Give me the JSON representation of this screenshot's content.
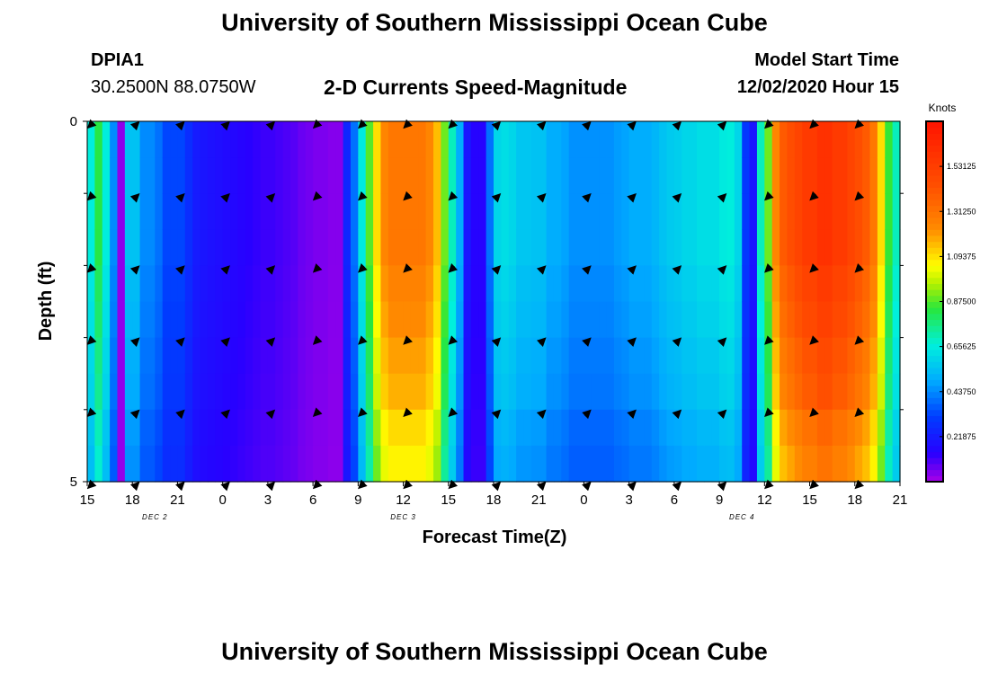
{
  "page": {
    "title": "University of Southern Mississippi Ocean Cube",
    "footer_title": "University of Southern Mississippi Ocean Cube",
    "station_id": "DPIA1",
    "station_coords": "30.2500N 88.0750W",
    "chart_heading": "2-D Currents Speed-Magnitude",
    "model_start_label": "Model Start Time",
    "model_start_value": "12/02/2020 Hour 15"
  },
  "chart_data": {
    "type": "heatmap",
    "title": "2-D Currents Speed-Magnitude",
    "xlabel": "Forecast Time(Z)",
    "ylabel": "Depth (ft)",
    "x_range_hours": [
      0,
      54
    ],
    "y_range_ft": [
      0,
      5
    ],
    "x_ticks": [
      {
        "h": 0,
        "label": "15"
      },
      {
        "h": 3,
        "label": "18"
      },
      {
        "h": 6,
        "label": "21"
      },
      {
        "h": 9,
        "label": "0"
      },
      {
        "h": 12,
        "label": "3"
      },
      {
        "h": 15,
        "label": "6"
      },
      {
        "h": 18,
        "label": "9"
      },
      {
        "h": 21,
        "label": "12"
      },
      {
        "h": 24,
        "label": "15"
      },
      {
        "h": 27,
        "label": "18"
      },
      {
        "h": 30,
        "label": "21"
      },
      {
        "h": 33,
        "label": "0"
      },
      {
        "h": 36,
        "label": "3"
      },
      {
        "h": 39,
        "label": "6"
      },
      {
        "h": 42,
        "label": "9"
      },
      {
        "h": 45,
        "label": "12"
      },
      {
        "h": 48,
        "label": "15"
      },
      {
        "h": 51,
        "label": "18"
      },
      {
        "h": 54,
        "label": "21"
      }
    ],
    "date_labels": [
      {
        "h": 4.5,
        "label": "DEC 2"
      },
      {
        "h": 21,
        "label": "DEC 3"
      },
      {
        "h": 43.5,
        "label": "DEC 4"
      }
    ],
    "y_ticks": [
      {
        "v": 0,
        "label": "0"
      },
      {
        "v": 5,
        "label": "5"
      }
    ],
    "colorbar": {
      "unit": "Knots",
      "min": 0,
      "max": 1.75,
      "ticks": [
        "0.21875",
        "0.43750",
        "0.65625",
        "0.87500",
        "1.09375",
        "1.31250",
        "1.53125"
      ],
      "tick_values": [
        0.21875,
        0.4375,
        0.65625,
        0.875,
        1.09375,
        1.3125,
        1.53125
      ]
    },
    "column_hours": [
      0,
      0.5,
      1,
      1.5,
      2,
      2.5,
      3,
      3.5,
      4,
      4.5,
      5,
      5.5,
      6,
      6.5,
      7,
      7.5,
      8,
      8.5,
      9,
      9.5,
      10,
      10.5,
      11,
      11.5,
      12,
      12.5,
      13,
      13.5,
      14,
      14.5,
      15,
      15.5,
      16,
      16.5,
      17,
      17.5,
      18,
      18.5,
      19,
      19.5,
      20,
      20.5,
      21,
      21.5,
      22,
      22.5,
      23,
      23.5,
      24,
      24.5,
      25,
      25.5,
      26,
      26.5,
      27,
      27.5,
      28,
      28.5,
      29,
      29.5,
      30,
      30.5,
      31,
      31.5,
      32,
      32.5,
      33,
      33.5,
      34,
      34.5,
      35,
      35.5,
      36,
      36.5,
      37,
      37.5,
      38,
      38.5,
      39,
      39.5,
      40,
      40.5,
      41,
      41.5,
      42,
      42.5,
      43,
      43.5,
      44,
      44.5,
      45,
      45.5,
      46,
      46.5,
      47,
      47.5,
      48,
      48.5,
      49,
      49.5,
      50,
      50.5,
      51,
      51.5,
      52,
      52.5,
      53,
      53.5
    ],
    "row_depths_ft": [
      0.25,
      0.75,
      1.25,
      1.75,
      2.25,
      2.75,
      3.25,
      3.75,
      4.25,
      4.75
    ],
    "surface_profile_knots": [
      0.66,
      0.83,
      0.66,
      0.44,
      0.03,
      0.55,
      0.55,
      0.44,
      0.44,
      0.4,
      0.33,
      0.33,
      0.33,
      0.27,
      0.22,
      0.2,
      0.19,
      0.18,
      0.17,
      0.16,
      0.15,
      0.14,
      0.13,
      0.12,
      0.12,
      0.11,
      0.1,
      0.09,
      0.07,
      0.06,
      0.05,
      0.05,
      0.04,
      0.04,
      0.25,
      0.4,
      0.65,
      0.88,
      1.1,
      1.25,
      1.3,
      1.3,
      1.3,
      1.3,
      1.3,
      1.25,
      1.15,
      0.9,
      0.7,
      0.5,
      0.2,
      0.15,
      0.15,
      0.4,
      0.6,
      0.62,
      0.6,
      0.56,
      0.56,
      0.55,
      0.55,
      0.5,
      0.5,
      0.48,
      0.45,
      0.45,
      0.45,
      0.45,
      0.45,
      0.45,
      0.47,
      0.48,
      0.5,
      0.5,
      0.5,
      0.52,
      0.55,
      0.57,
      0.58,
      0.6,
      0.6,
      0.62,
      0.62,
      0.62,
      0.65,
      0.66,
      0.6,
      0.3,
      0.2,
      0.7,
      0.9,
      1.25,
      1.4,
      1.45,
      1.5,
      1.55,
      1.55,
      1.6,
      1.6,
      1.55,
      1.55,
      1.5,
      1.45,
      1.4,
      1.3,
      1.1,
      0.85,
      0.7
    ],
    "depth_factor": [
      1.0,
      1.0,
      1.0,
      1.0,
      0.97,
      0.95,
      0.92,
      0.9,
      0.85,
      0.82
    ],
    "arrow_hours": [
      0,
      3,
      6,
      9,
      12,
      15,
      18,
      21,
      24,
      27,
      30,
      33,
      36,
      39,
      42,
      45,
      48,
      51
    ],
    "arrow_depths_ft": [
      0,
      1,
      2,
      3,
      4,
      5
    ],
    "arrow_direction_deg": [
      135,
      315,
      315,
      315,
      315,
      135,
      135,
      135,
      135,
      315,
      315,
      315,
      315,
      315,
      315,
      135,
      135,
      135
    ]
  }
}
